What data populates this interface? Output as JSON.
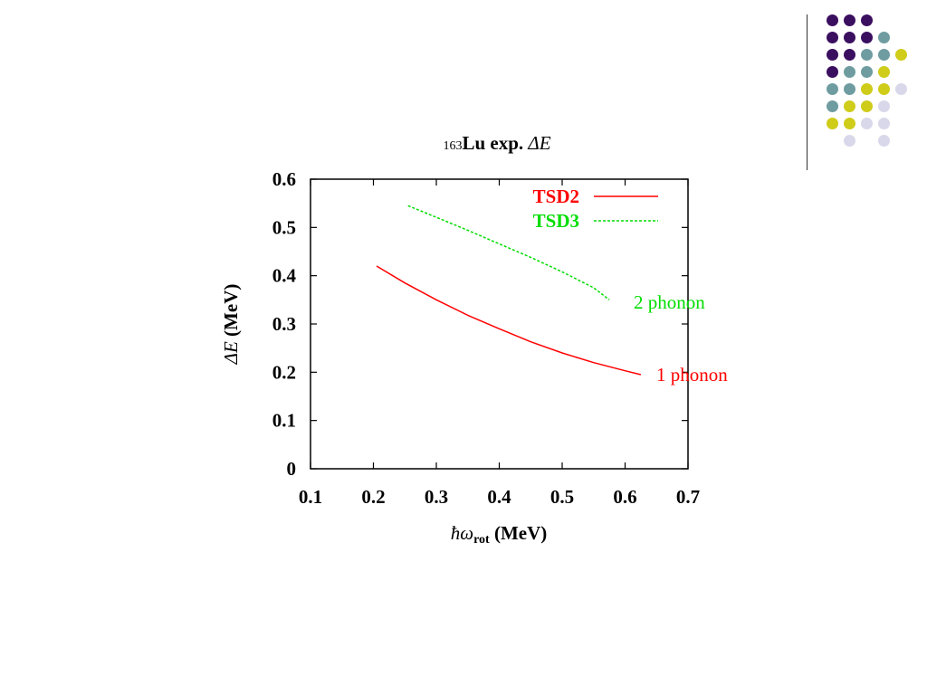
{
  "slide": {
    "decoration": {
      "palette": [
        "#3b0f60",
        "#6f9ca0",
        "#cfcc1a",
        "#d8d8ea"
      ]
    }
  },
  "chart_data": {
    "type": "line",
    "title": {
      "superscript": "163",
      "main": "Lu exp. ",
      "symbol": "ΔE"
    },
    "xlabel": {
      "hbar": "ħ",
      "omega": "ω",
      "subscript": "rot",
      "unit": " (MeV)"
    },
    "ylabel": {
      "symbol": "ΔE",
      "unit": " (MeV)"
    },
    "xlim": [
      0.1,
      0.7
    ],
    "ylim": [
      0,
      0.6
    ],
    "xticks": [
      "0.1",
      "0.2",
      "0.3",
      "0.4",
      "0.5",
      "0.6",
      "0.7"
    ],
    "yticks": [
      "0",
      "0.1",
      "0.2",
      "0.3",
      "0.4",
      "0.5",
      "0.6"
    ],
    "grid": false,
    "legend_position": "top-right",
    "series": [
      {
        "name": "TSD2",
        "color": "#ff0000",
        "style": "solid",
        "annotation": "1 phonon",
        "x": [
          0.205,
          0.25,
          0.3,
          0.35,
          0.4,
          0.45,
          0.5,
          0.55,
          0.6,
          0.625
        ],
        "y": [
          0.42,
          0.385,
          0.35,
          0.318,
          0.29,
          0.263,
          0.24,
          0.22,
          0.203,
          0.195
        ]
      },
      {
        "name": "TSD3",
        "color": "#00dd00",
        "style": "dashed",
        "annotation": "2 phonon",
        "x": [
          0.255,
          0.3,
          0.35,
          0.4,
          0.45,
          0.5,
          0.55,
          0.575
        ],
        "y": [
          0.545,
          0.521,
          0.494,
          0.466,
          0.438,
          0.408,
          0.375,
          0.35
        ]
      }
    ]
  }
}
